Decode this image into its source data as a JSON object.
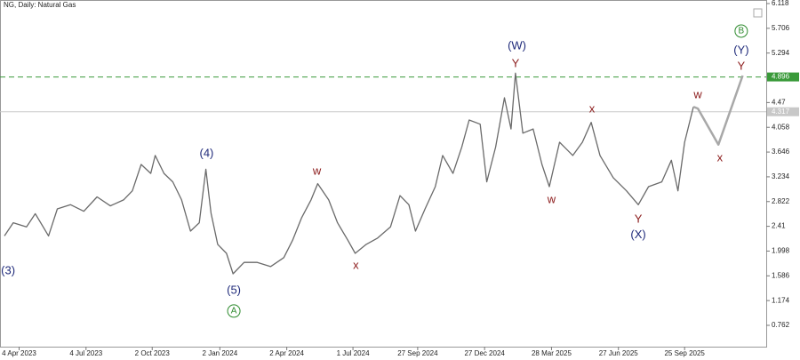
{
  "chart_data": {
    "type": "line",
    "title": "NG, Daily:  Natural Gas",
    "x": [
      "2023-03-15",
      "2023-03-27",
      "2023-04-14",
      "2023-04-26",
      "2023-05-14",
      "2023-05-26",
      "2023-06-13",
      "2023-07-01",
      "2023-07-19",
      "2023-08-06",
      "2023-08-24",
      "2023-09-05",
      "2023-09-17",
      "2023-09-30",
      "2023-10-06",
      "2023-10-18",
      "2023-10-30",
      "2023-11-11",
      "2023-11-23",
      "2023-12-05",
      "2023-12-14",
      "2023-12-21",
      "2023-12-30",
      "2024-01-11",
      "2024-01-20",
      "2024-02-04",
      "2024-02-22",
      "2024-03-11",
      "2024-03-29",
      "2024-04-10",
      "2024-04-22",
      "2024-05-05",
      "2024-05-14",
      "2024-05-29",
      "2024-06-10",
      "2024-06-24",
      "2024-07-04",
      "2024-07-19",
      "2024-08-03",
      "2024-08-21",
      "2024-09-03",
      "2024-09-15",
      "2024-09-24",
      "2024-10-07",
      "2024-10-21",
      "2024-10-31",
      "2024-11-14",
      "2024-11-26",
      "2024-12-06",
      "2024-12-21",
      "2024-12-30",
      "2025-01-11",
      "2025-01-23",
      "2025-02-01",
      "2025-02-07",
      "2025-02-17",
      "2025-03-03",
      "2025-03-15",
      "2025-03-25",
      "2025-04-08",
      "2025-04-26",
      "2025-05-09",
      "2025-05-21",
      "2025-06-02",
      "2025-06-20",
      "2025-07-08",
      "2025-07-24",
      "2025-08-07",
      "2025-08-25",
      "2025-09-07",
      "2025-09-16",
      "2025-09-25",
      "2025-10-07",
      "2025-10-13",
      "2025-11-10",
      "2025-12-13"
    ],
    "series": [
      {
        "color": "#6a6a6a",
        "values": [
          2.25,
          2.47,
          2.4,
          2.62,
          2.25,
          2.7,
          2.77,
          2.66,
          2.9,
          2.75,
          2.85,
          3.0,
          3.44,
          3.29,
          3.59,
          3.29,
          3.15,
          2.85,
          2.33,
          2.47,
          3.36,
          2.63,
          2.11,
          1.96,
          1.62,
          1.81,
          1.81,
          1.74,
          1.89,
          2.18,
          2.55,
          2.85,
          3.12,
          2.85,
          2.47,
          2.18,
          1.96,
          2.11,
          2.21,
          2.4,
          2.92,
          2.77,
          2.33,
          2.7,
          3.07,
          3.59,
          3.29,
          3.73,
          4.18,
          4.11,
          3.15,
          3.73,
          4.55,
          4.03,
          4.96,
          3.96,
          4.03,
          3.44,
          3.07,
          3.81,
          3.59,
          3.81,
          4.14,
          3.59,
          3.22,
          3.0,
          2.77,
          3.07,
          3.15,
          3.51,
          3.0,
          3.81,
          4.4,
          null,
          null,
          null
        ]
      },
      {
        "color": "#a8a8a8",
        "values": [
          null,
          null,
          null,
          null,
          null,
          null,
          null,
          null,
          null,
          null,
          null,
          null,
          null,
          null,
          null,
          null,
          null,
          null,
          null,
          null,
          null,
          null,
          null,
          null,
          null,
          null,
          null,
          null,
          null,
          null,
          null,
          null,
          null,
          null,
          null,
          null,
          null,
          null,
          null,
          null,
          null,
          null,
          null,
          null,
          null,
          null,
          null,
          null,
          null,
          null,
          null,
          null,
          null,
          null,
          null,
          null,
          null,
          null,
          null,
          null,
          null,
          null,
          null,
          null,
          null,
          null,
          null,
          null,
          null,
          null,
          null,
          null,
          4.4,
          4.37,
          3.77,
          4.92
        ]
      }
    ],
    "xlim": [
      "2023-03-09",
      "2026-01-14"
    ],
    "xticks": [
      {
        "value": "2023-04-04",
        "label": "4 Apr 2023"
      },
      {
        "value": "2023-07-04",
        "label": "4 Jul 2023"
      },
      {
        "value": "2023-10-02",
        "label": "2 Oct 2023"
      },
      {
        "value": "2024-01-02",
        "label": "2 Jan 2024"
      },
      {
        "value": "2024-04-02",
        "label": "2 Apr 2024"
      },
      {
        "value": "2024-07-01",
        "label": "1 Jul 2024"
      },
      {
        "value": "2024-09-27",
        "label": "27 Sep 2024"
      },
      {
        "value": "2024-12-27",
        "label": "27 Dec 2024"
      },
      {
        "value": "2025-03-28",
        "label": "28 Mar 2025"
      },
      {
        "value": "2025-06-27",
        "label": "27 Jun 2025"
      },
      {
        "value": "2025-09-25",
        "label": "25 Sep 2025"
      }
    ],
    "ylim": [
      0.407,
      6.177
    ],
    "yticks": [
      0.762,
      1.174,
      1.586,
      1.998,
      2.41,
      2.822,
      3.234,
      3.646,
      4.058,
      4.47,
      5.294,
      5.706,
      6.118
    ],
    "levels": [
      {
        "value": 4.896,
        "color": "#3a9a3a",
        "dashed": true
      },
      {
        "value": 4.317,
        "color": "#c8c8c8",
        "dashed": false
      }
    ],
    "annotations": [
      {
        "text": "(3)",
        "x": "2023-03-20",
        "y": 1.66,
        "color": "#1f2a7a",
        "circle": false
      },
      {
        "text": "(4)",
        "x": "2023-12-15",
        "y": 3.62,
        "color": "#1f2a7a",
        "circle": false
      },
      {
        "text": "(5)",
        "x": "2024-01-21",
        "y": 1.34,
        "color": "#1f2a7a",
        "circle": false
      },
      {
        "text": "A",
        "x": "2024-01-21",
        "y": 1.0,
        "color": "#2e8b2e",
        "circle": true
      },
      {
        "text": "w",
        "x": "2024-05-13",
        "y": 3.32,
        "color": "#8b1a1a",
        "circle": false
      },
      {
        "text": "x",
        "x": "2024-07-05",
        "y": 1.75,
        "color": "#8b1a1a",
        "circle": false
      },
      {
        "text": "(W)",
        "x": "2025-02-09",
        "y": 5.41,
        "color": "#1f2a7a",
        "circle": false
      },
      {
        "text": "Y",
        "x": "2025-02-07",
        "y": 5.11,
        "color": "#8b1a1a",
        "circle": false
      },
      {
        "text": "w",
        "x": "2025-03-28",
        "y": 2.85,
        "color": "#8b1a1a",
        "circle": false
      },
      {
        "text": "x",
        "x": "2025-05-22",
        "y": 4.36,
        "color": "#8b1a1a",
        "circle": false
      },
      {
        "text": "Y",
        "x": "2025-07-24",
        "y": 2.52,
        "color": "#8b1a1a",
        "circle": false
      },
      {
        "text": "(X)",
        "x": "2025-07-24",
        "y": 2.26,
        "color": "#1f2a7a",
        "circle": false
      },
      {
        "text": "w",
        "x": "2025-10-13",
        "y": 4.59,
        "color": "#8b1a1a",
        "circle": false
      },
      {
        "text": "x",
        "x": "2025-11-12",
        "y": 3.54,
        "color": "#8b1a1a",
        "circle": false
      },
      {
        "text": "Y",
        "x": "2025-12-11",
        "y": 5.07,
        "color": "#8b1a1a",
        "circle": false
      },
      {
        "text": "(Y)",
        "x": "2025-12-11",
        "y": 5.33,
        "color": "#1f2a7a",
        "circle": false
      },
      {
        "text": "B",
        "x": "2025-12-11",
        "y": 5.66,
        "color": "#2e8b2e",
        "circle": true
      }
    ]
  }
}
